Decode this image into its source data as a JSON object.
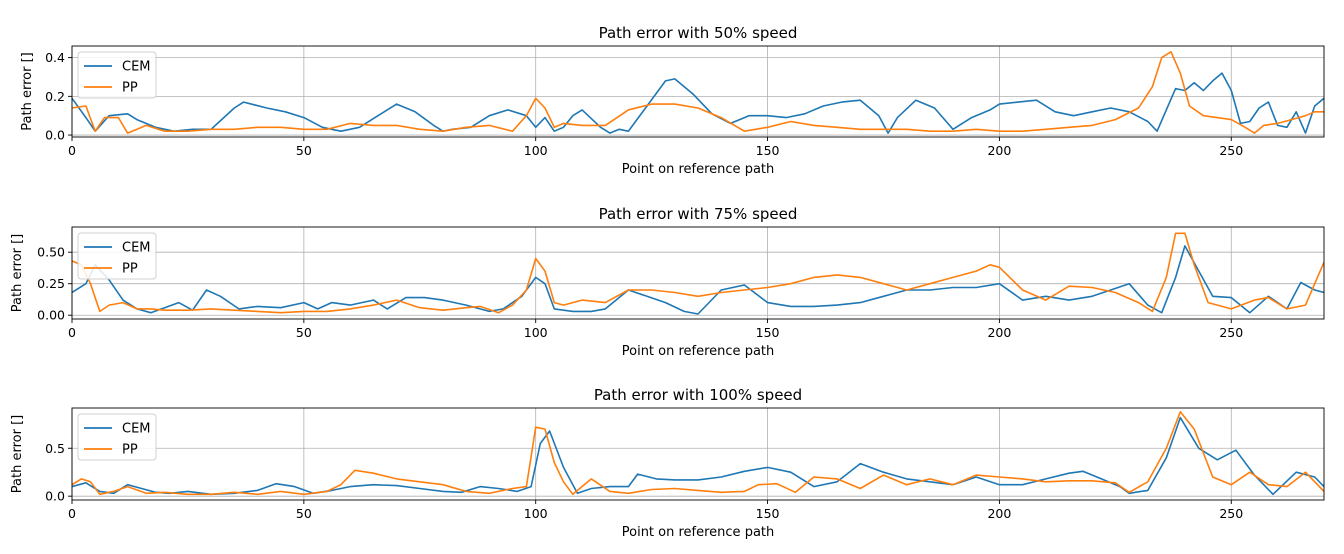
{
  "colors": {
    "CEM": "#1f77b4",
    "PP": "#ff7f0e",
    "grid": "#b0b0b0"
  },
  "chart_data": [
    {
      "type": "line",
      "title": "Path error with 50% speed",
      "xlabel": "Point on reference path",
      "ylabel": "Path error []",
      "xlim": [
        0,
        270
      ],
      "ylim": [
        -0.01,
        0.46
      ],
      "xticks": [
        0,
        50,
        100,
        150,
        200,
        250
      ],
      "yticks": [
        0.0,
        0.2,
        0.4
      ],
      "ytick_labels": [
        "0.0",
        "0.2",
        "0.4"
      ],
      "grid": true,
      "legend": "top-left",
      "series": [
        {
          "name": "CEM",
          "color": "#1f77b4",
          "x": [
            0,
            3,
            5,
            8,
            12,
            14,
            18,
            22,
            26,
            30,
            35,
            37,
            42,
            46,
            50,
            54,
            58,
            62,
            66,
            70,
            74,
            78,
            80,
            82,
            86,
            90,
            94,
            98,
            100,
            102,
            104,
            106,
            108,
            110,
            114,
            116,
            118,
            120,
            124,
            128,
            130,
            134,
            138,
            142,
            146,
            150,
            154,
            158,
            162,
            166,
            170,
            174,
            176,
            178,
            182,
            186,
            190,
            194,
            198,
            200,
            204,
            208,
            212,
            216,
            220,
            224,
            228,
            232,
            234,
            236,
            238,
            240,
            242,
            244,
            246,
            248,
            250,
            252,
            254,
            256,
            258,
            260,
            262,
            264,
            266,
            268,
            270
          ],
          "y": [
            0.19,
            0.09,
            0.02,
            0.1,
            0.11,
            0.08,
            0.04,
            0.02,
            0.03,
            0.03,
            0.14,
            0.17,
            0.14,
            0.12,
            0.09,
            0.04,
            0.02,
            0.04,
            0.1,
            0.16,
            0.12,
            0.05,
            0.02,
            0.03,
            0.04,
            0.1,
            0.13,
            0.1,
            0.04,
            0.09,
            0.02,
            0.04,
            0.1,
            0.13,
            0.04,
            0.01,
            0.03,
            0.02,
            0.15,
            0.28,
            0.29,
            0.21,
            0.11,
            0.06,
            0.1,
            0.1,
            0.09,
            0.11,
            0.15,
            0.17,
            0.18,
            0.1,
            0.01,
            0.09,
            0.18,
            0.14,
            0.03,
            0.09,
            0.13,
            0.16,
            0.17,
            0.18,
            0.12,
            0.1,
            0.12,
            0.14,
            0.12,
            0.07,
            0.02,
            0.13,
            0.24,
            0.23,
            0.27,
            0.23,
            0.28,
            0.32,
            0.23,
            0.06,
            0.07,
            0.14,
            0.17,
            0.05,
            0.04,
            0.12,
            0.01,
            0.15,
            0.19
          ]
        },
        {
          "name": "PP",
          "color": "#ff7f0e",
          "x": [
            0,
            3,
            5,
            7,
            10,
            12,
            16,
            20,
            25,
            30,
            35,
            40,
            45,
            50,
            55,
            60,
            65,
            70,
            75,
            80,
            85,
            90,
            95,
            98,
            100,
            102,
            104,
            106,
            110,
            115,
            120,
            125,
            130,
            135,
            140,
            145,
            150,
            155,
            160,
            165,
            170,
            175,
            180,
            185,
            190,
            195,
            200,
            205,
            210,
            215,
            220,
            225,
            230,
            233,
            235,
            237,
            239,
            241,
            244,
            250,
            253,
            255,
            257,
            260,
            263,
            266,
            268,
            270
          ],
          "y": [
            0.14,
            0.15,
            0.02,
            0.09,
            0.09,
            0.01,
            0.05,
            0.02,
            0.02,
            0.03,
            0.03,
            0.04,
            0.04,
            0.03,
            0.03,
            0.06,
            0.05,
            0.05,
            0.03,
            0.02,
            0.04,
            0.05,
            0.02,
            0.1,
            0.19,
            0.14,
            0.04,
            0.06,
            0.05,
            0.05,
            0.13,
            0.16,
            0.16,
            0.14,
            0.09,
            0.02,
            0.04,
            0.07,
            0.05,
            0.04,
            0.03,
            0.03,
            0.03,
            0.02,
            0.02,
            0.03,
            0.02,
            0.02,
            0.03,
            0.04,
            0.05,
            0.08,
            0.14,
            0.25,
            0.4,
            0.43,
            0.32,
            0.15,
            0.1,
            0.08,
            0.04,
            0.01,
            0.05,
            0.06,
            0.08,
            0.1,
            0.12,
            0.12
          ]
        }
      ]
    },
    {
      "type": "line",
      "title": "Path error with 75% speed",
      "xlabel": "Point on reference path",
      "ylabel": "Path error []",
      "xlim": [
        0,
        270
      ],
      "ylim": [
        -0.03,
        0.7
      ],
      "xticks": [
        0,
        50,
        100,
        150,
        200,
        250
      ],
      "yticks": [
        0.0,
        0.25,
        0.5
      ],
      "ytick_labels": [
        "0.00",
        "0.25",
        "0.50"
      ],
      "grid": true,
      "legend": "top-left",
      "series": [
        {
          "name": "CEM",
          "color": "#1f77b4",
          "x": [
            0,
            3,
            5,
            8,
            11,
            14,
            17,
            20,
            23,
            26,
            29,
            32,
            36,
            40,
            45,
            50,
            53,
            56,
            60,
            65,
            68,
            72,
            76,
            80,
            85,
            88,
            90,
            93,
            97,
            100,
            102,
            104,
            108,
            112,
            115,
            120,
            124,
            128,
            132,
            135,
            140,
            145,
            150,
            155,
            160,
            165,
            170,
            175,
            180,
            185,
            190,
            195,
            200,
            205,
            210,
            215,
            220,
            224,
            228,
            232,
            235,
            238,
            240,
            243,
            246,
            250,
            254,
            258,
            262,
            265,
            268,
            270
          ],
          "y": [
            0.18,
            0.25,
            0.4,
            0.28,
            0.12,
            0.05,
            0.02,
            0.06,
            0.1,
            0.04,
            0.2,
            0.15,
            0.05,
            0.07,
            0.06,
            0.1,
            0.05,
            0.1,
            0.08,
            0.12,
            0.05,
            0.14,
            0.14,
            0.12,
            0.08,
            0.05,
            0.03,
            0.05,
            0.15,
            0.3,
            0.25,
            0.05,
            0.03,
            0.03,
            0.05,
            0.2,
            0.15,
            0.1,
            0.03,
            0.01,
            0.2,
            0.24,
            0.1,
            0.07,
            0.07,
            0.08,
            0.1,
            0.15,
            0.2,
            0.2,
            0.22,
            0.22,
            0.25,
            0.12,
            0.15,
            0.12,
            0.15,
            0.2,
            0.25,
            0.08,
            0.02,
            0.3,
            0.55,
            0.35,
            0.15,
            0.14,
            0.02,
            0.15,
            0.05,
            0.26,
            0.2,
            0.18
          ]
        },
        {
          "name": "PP",
          "color": "#ff7f0e",
          "x": [
            0,
            2,
            4,
            6,
            8,
            11,
            14,
            17,
            20,
            25,
            30,
            35,
            40,
            45,
            50,
            55,
            60,
            65,
            70,
            75,
            80,
            85,
            88,
            92,
            95,
            98,
            100,
            102,
            104,
            106,
            110,
            115,
            120,
            125,
            130,
            135,
            140,
            145,
            150,
            155,
            160,
            165,
            170,
            175,
            180,
            185,
            190,
            195,
            198,
            200,
            205,
            210,
            215,
            220,
            225,
            230,
            233,
            236,
            238,
            240,
            242,
            245,
            250,
            255,
            258,
            262,
            266,
            268,
            270
          ],
          "y": [
            0.43,
            0.4,
            0.25,
            0.03,
            0.08,
            0.1,
            0.05,
            0.05,
            0.04,
            0.04,
            0.05,
            0.04,
            0.03,
            0.02,
            0.03,
            0.03,
            0.05,
            0.08,
            0.12,
            0.06,
            0.04,
            0.06,
            0.07,
            0.02,
            0.08,
            0.2,
            0.45,
            0.35,
            0.1,
            0.08,
            0.12,
            0.1,
            0.2,
            0.2,
            0.18,
            0.15,
            0.18,
            0.2,
            0.22,
            0.25,
            0.3,
            0.32,
            0.3,
            0.25,
            0.2,
            0.25,
            0.3,
            0.35,
            0.4,
            0.38,
            0.2,
            0.12,
            0.23,
            0.22,
            0.18,
            0.1,
            0.03,
            0.3,
            0.65,
            0.65,
            0.4,
            0.1,
            0.05,
            0.12,
            0.14,
            0.05,
            0.08,
            0.25,
            0.42
          ]
        }
      ]
    },
    {
      "type": "line",
      "title": "Path error with 100% speed",
      "xlabel": "Point on reference path",
      "ylabel": "Path error []",
      "xlim": [
        0,
        270
      ],
      "ylim": [
        -0.04,
        0.92
      ],
      "xticks": [
        0,
        50,
        100,
        150,
        200,
        250
      ],
      "yticks": [
        0.0,
        0.5
      ],
      "ytick_labels": [
        "0.0",
        "0.5"
      ],
      "grid": true,
      "legend": "top-left",
      "series": [
        {
          "name": "CEM",
          "color": "#1f77b4",
          "x": [
            0,
            3,
            6,
            9,
            12,
            15,
            18,
            21,
            25,
            30,
            35,
            40,
            44,
            48,
            52,
            56,
            60,
            65,
            70,
            75,
            80,
            84,
            88,
            92,
            96,
            99,
            101,
            103,
            106,
            109,
            112,
            116,
            120,
            122,
            126,
            130,
            135,
            140,
            145,
            150,
            155,
            160,
            165,
            170,
            175,
            180,
            185,
            190,
            195,
            200,
            205,
            210,
            215,
            218,
            222,
            226,
            228,
            232,
            236,
            239,
            243,
            247,
            251,
            255,
            259,
            264,
            268,
            270
          ],
          "y": [
            0.1,
            0.14,
            0.05,
            0.03,
            0.12,
            0.08,
            0.04,
            0.03,
            0.05,
            0.02,
            0.03,
            0.06,
            0.13,
            0.1,
            0.03,
            0.06,
            0.1,
            0.12,
            0.11,
            0.08,
            0.05,
            0.04,
            0.1,
            0.08,
            0.05,
            0.1,
            0.55,
            0.68,
            0.3,
            0.03,
            0.08,
            0.1,
            0.1,
            0.23,
            0.18,
            0.17,
            0.17,
            0.2,
            0.26,
            0.3,
            0.25,
            0.1,
            0.15,
            0.34,
            0.25,
            0.18,
            0.15,
            0.12,
            0.2,
            0.12,
            0.12,
            0.18,
            0.24,
            0.26,
            0.18,
            0.1,
            0.03,
            0.06,
            0.4,
            0.82,
            0.5,
            0.38,
            0.48,
            0.22,
            0.02,
            0.25,
            0.2,
            0.1
          ]
        },
        {
          "name": "PP",
          "color": "#ff7f0e",
          "x": [
            0,
            2,
            4,
            6,
            9,
            12,
            16,
            20,
            25,
            30,
            35,
            40,
            45,
            50,
            55,
            58,
            61,
            65,
            70,
            75,
            80,
            85,
            90,
            95,
            98,
            100,
            102,
            104,
            106,
            108,
            112,
            116,
            120,
            125,
            130,
            135,
            140,
            145,
            148,
            152,
            156,
            160,
            165,
            170,
            175,
            180,
            185,
            190,
            195,
            200,
            205,
            210,
            215,
            220,
            225,
            228,
            232,
            236,
            239,
            242,
            246,
            250,
            254,
            258,
            262,
            266,
            268,
            270
          ],
          "y": [
            0.12,
            0.18,
            0.15,
            0.02,
            0.05,
            0.1,
            0.03,
            0.04,
            0.02,
            0.02,
            0.04,
            0.02,
            0.05,
            0.02,
            0.05,
            0.12,
            0.27,
            0.24,
            0.18,
            0.15,
            0.12,
            0.05,
            0.03,
            0.08,
            0.1,
            0.72,
            0.7,
            0.35,
            0.15,
            0.02,
            0.18,
            0.05,
            0.03,
            0.07,
            0.08,
            0.06,
            0.04,
            0.05,
            0.12,
            0.13,
            0.04,
            0.2,
            0.18,
            0.08,
            0.22,
            0.12,
            0.18,
            0.12,
            0.22,
            0.2,
            0.18,
            0.15,
            0.16,
            0.16,
            0.14,
            0.04,
            0.15,
            0.5,
            0.88,
            0.7,
            0.2,
            0.12,
            0.25,
            0.12,
            0.1,
            0.25,
            0.15,
            0.05
          ]
        }
      ]
    }
  ]
}
